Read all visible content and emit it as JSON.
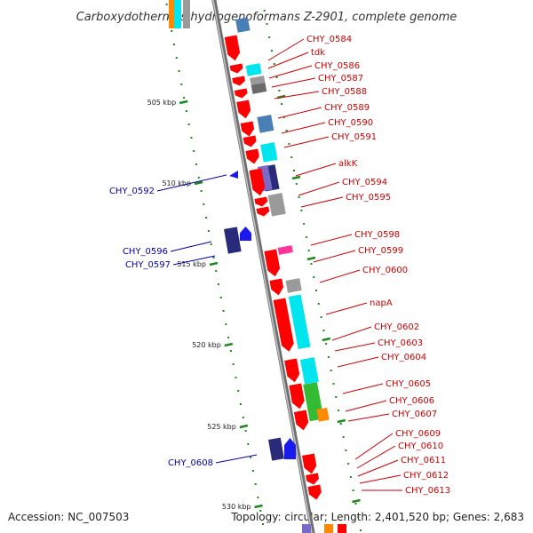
{
  "title": "Carboxydothermus hydrogenoformans Z-2901, complete genome",
  "accession": "Accession: NC_007503",
  "topology": "Topology: circular; Length: 2,401,520 bp; Genes: 2,683",
  "ticks": [
    {
      "label": "505 kbp",
      "pos": 505
    },
    {
      "label": "510 kbp",
      "pos": 510
    },
    {
      "label": "515 kbp",
      "pos": 515
    },
    {
      "label": "520 kbp",
      "pos": 520
    },
    {
      "label": "525 kbp",
      "pos": 525
    },
    {
      "label": "530 kbp",
      "pos": 530
    }
  ],
  "colors": {
    "forward_label": "#cc0000",
    "reverse_label": "#0000aa",
    "forward_cds": "#ff0000",
    "reverse_cds": "#1a1aee",
    "backbone": "#8a8a8a",
    "ticks_green": "#1a8a1a",
    "cog_cyan": "#00e5ee",
    "cog_steel": "#4a7fb5",
    "cog_gray": "#9a9a9a",
    "cog_darkgray": "#6a6a6a",
    "cog_navy": "#2a2a7a",
    "cog_violet": "#7a6ac8",
    "cog_green": "#33bb33",
    "cog_orange": "#ff8a00",
    "cog_pink": "#ff3399"
  },
  "forward_genes": [
    "CHY_0584",
    "tdk",
    "CHY_0586",
    "CHY_0587",
    "CHY_0588",
    "CHY_0589",
    "CHY_0590",
    "CHY_0591",
    "alkK",
    "CHY_0594",
    "CHY_0595",
    "CHY_0598",
    "CHY_0599",
    "CHY_0600",
    "napA",
    "CHY_0602",
    "CHY_0603",
    "CHY_0604",
    "CHY_0605",
    "CHY_0606",
    "CHY_0607",
    "CHY_0609",
    "CHY_0610",
    "CHY_0611",
    "CHY_0612",
    "CHY_0613"
  ],
  "reverse_genes": [
    "CHY_0592",
    "CHY_0596",
    "CHY_0597",
    "CHY_0608"
  ]
}
